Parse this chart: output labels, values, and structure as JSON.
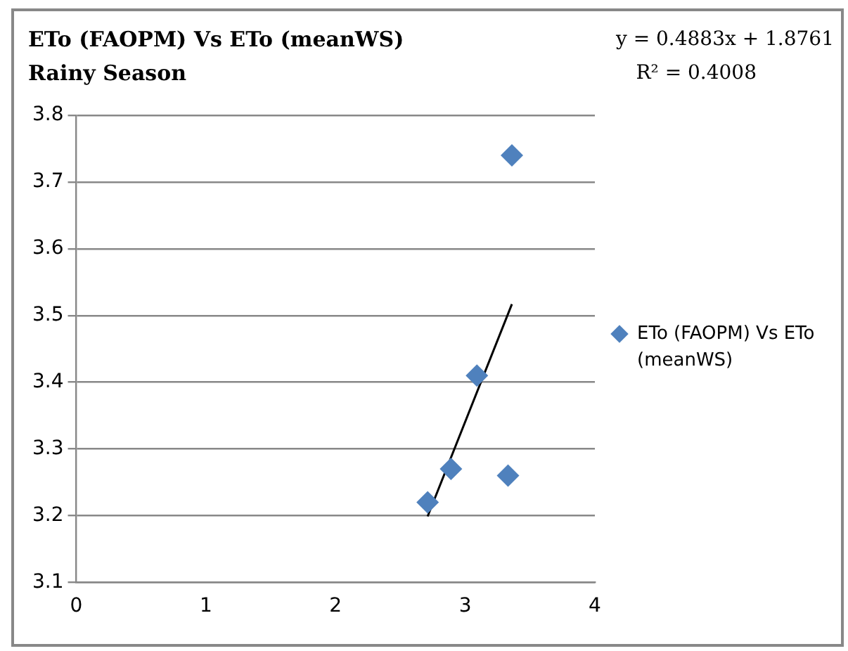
{
  "chart_data": {
    "type": "scatter",
    "title": "ETo (FAOPM) Vs ETo (meanWS)",
    "subtitle": "Rainy Season",
    "annotations": [
      "y = 0.4883x + 1.8761",
      "R² = 0.4008"
    ],
    "series": [
      {
        "name": "ETo (FAOPM) Vs ETo (meanWS)",
        "color": "#4f81bd",
        "x": [
          2.71,
          2.89,
          3.09,
          3.33,
          3.36
        ],
        "values": [
          3.22,
          3.27,
          3.41,
          3.26,
          3.74
        ],
        "marker": "diamond"
      },
      {
        "type": "line",
        "color": "#000000",
        "x": [
          2.71,
          3.36
        ],
        "values": [
          3.199,
          3.517
        ],
        "marker": "none"
      }
    ],
    "xlim": [
      0,
      4
    ],
    "xticks": [
      0,
      1,
      2,
      3,
      4
    ],
    "ylim": [
      3.1,
      3.8
    ],
    "yticks": [
      3.1,
      3.2,
      3.3,
      3.4,
      3.5,
      3.6,
      3.7,
      3.8
    ],
    "grid": "y",
    "legend": "right"
  }
}
